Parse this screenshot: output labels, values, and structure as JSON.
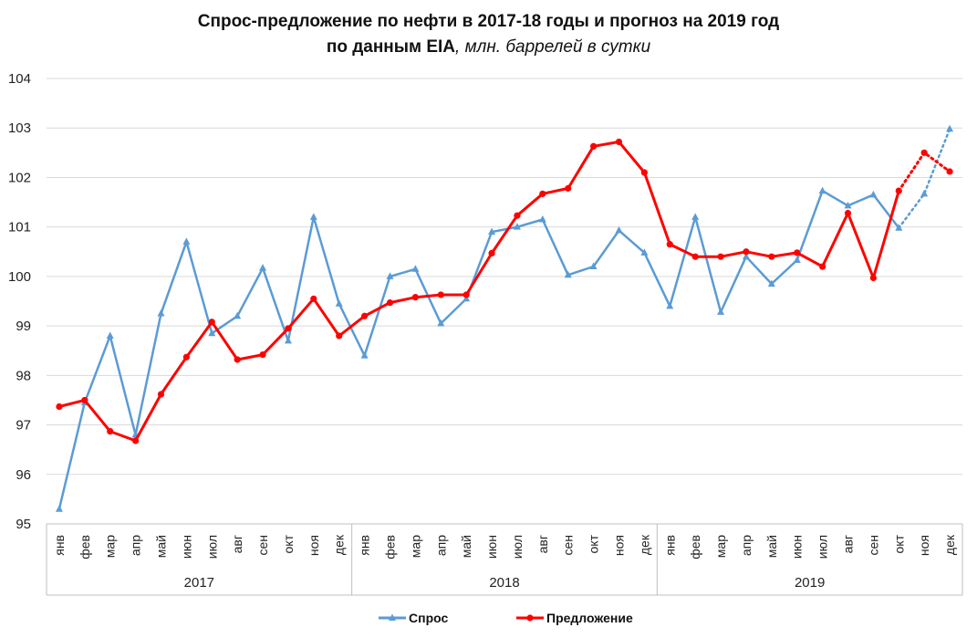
{
  "chart_data": {
    "type": "line",
    "title": "Спрос-предложение по нефти в 2017-18 годы и прогноз на 2019 год",
    "subtitle_bold": "по данным EIA",
    "subtitle_italic": ", млн. баррелей в сутки",
    "ylim": [
      95,
      104
    ],
    "yticks": [
      "95",
      "96",
      "97",
      "98",
      "99",
      "100",
      "101",
      "102",
      "103",
      "104"
    ],
    "grid": true,
    "legend_position": "bottom",
    "months": [
      "янв",
      "фев",
      "мар",
      "апр",
      "май",
      "июн",
      "июл",
      "авг",
      "сен",
      "окт",
      "ноя",
      "дек"
    ],
    "years": [
      "2017",
      "2018",
      "2019"
    ],
    "forecast_from_index": 33,
    "series": [
      {
        "name": "Спрос",
        "color": "#5B9BD5",
        "marker": "triangle",
        "values": [
          95.3,
          97.45,
          98.8,
          96.8,
          99.25,
          100.7,
          98.85,
          99.2,
          100.17,
          98.7,
          101.2,
          99.45,
          98.4,
          100.0,
          100.15,
          99.05,
          99.55,
          100.9,
          101.0,
          101.15,
          100.03,
          100.2,
          100.93,
          100.48,
          99.4,
          101.2,
          99.28,
          100.4,
          99.85,
          100.33,
          101.73,
          101.43,
          101.65,
          100.98,
          101.67,
          102.98
        ]
      },
      {
        "name": "Предложение",
        "color": "#FF0000",
        "marker": "circle",
        "values": [
          97.37,
          97.5,
          96.87,
          96.68,
          97.62,
          98.37,
          99.08,
          98.32,
          98.42,
          98.95,
          99.55,
          98.8,
          99.2,
          99.47,
          99.58,
          99.63,
          99.63,
          100.47,
          101.23,
          101.67,
          101.78,
          102.63,
          102.72,
          102.1,
          100.65,
          100.4,
          100.4,
          100.5,
          100.4,
          100.48,
          100.2,
          101.28,
          99.97,
          101.73,
          102.5,
          102.12
        ]
      }
    ]
  }
}
